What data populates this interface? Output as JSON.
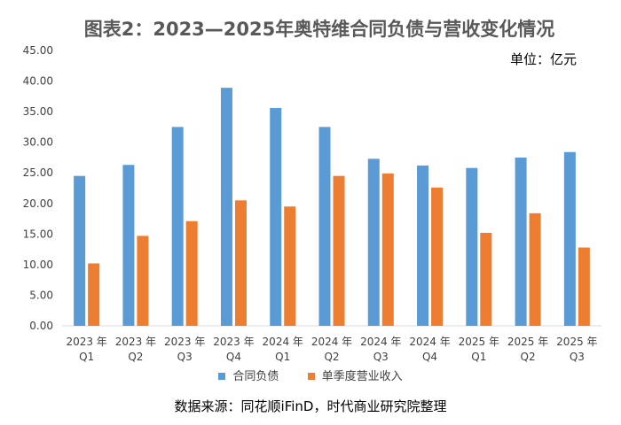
{
  "chart_data": {
    "type": "bar",
    "title": "图表2：2023—2025年奥特维合同负债与营收变化情况",
    "unit_label": "单位：亿元",
    "categories": [
      [
        "2023 年",
        "Q1"
      ],
      [
        "2023 年",
        "Q2"
      ],
      [
        "2023 年",
        "Q3"
      ],
      [
        "2023 年",
        "Q4"
      ],
      [
        "2024 年",
        "Q1"
      ],
      [
        "2024 年",
        "Q2"
      ],
      [
        "2024 年",
        "Q3"
      ],
      [
        "2024 年",
        "Q4"
      ],
      [
        "2025 年",
        "Q1"
      ],
      [
        "2025 年",
        "Q2"
      ],
      [
        "2025 年",
        "Q3"
      ]
    ],
    "series": [
      {
        "name": "合同负债",
        "color": "#5B9BD5",
        "values": [
          24.5,
          26.3,
          32.5,
          38.9,
          35.6,
          32.5,
          27.3,
          26.2,
          25.8,
          27.5,
          28.4
        ]
      },
      {
        "name": "单季度营业收入",
        "color": "#ED7D31",
        "values": [
          10.2,
          14.7,
          17.1,
          20.5,
          19.5,
          24.5,
          24.9,
          22.6,
          15.2,
          18.4,
          12.8
        ]
      }
    ],
    "ylim": [
      0,
      45
    ],
    "yticks": [
      "0.00",
      "5.00",
      "10.00",
      "15.00",
      "20.00",
      "25.00",
      "30.00",
      "35.00",
      "40.00",
      "45.00"
    ],
    "grid": false,
    "legend": "bottom"
  },
  "source": "数据来源：同花顺iFinD，时代商业研究院整理"
}
